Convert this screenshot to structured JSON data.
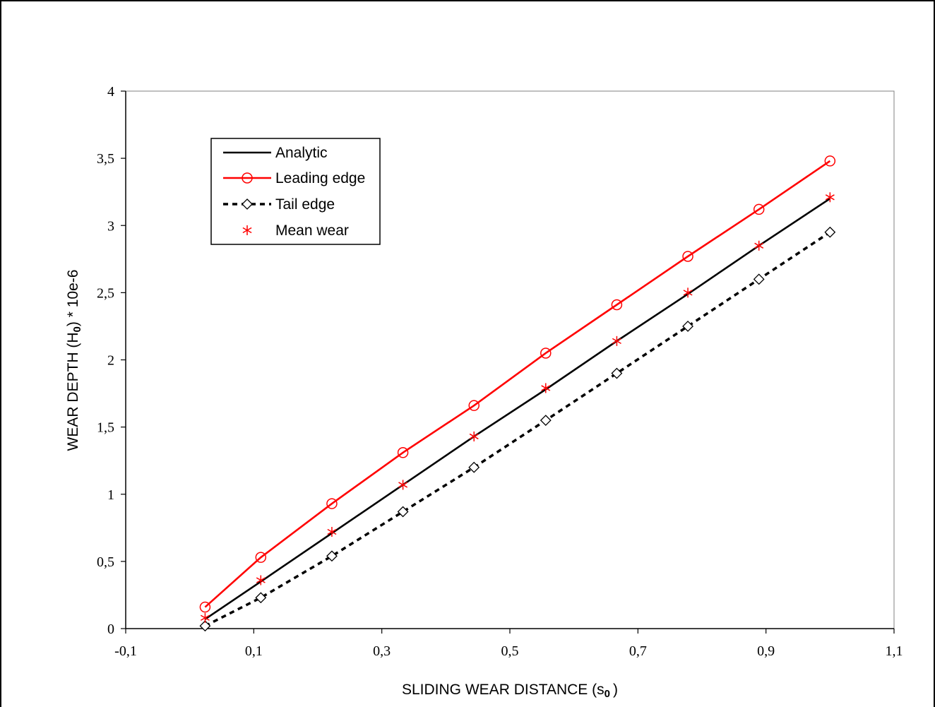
{
  "chart_data": {
    "type": "line",
    "title": "",
    "xlabel_main": "SLIDING WEAR DISTANCE (s",
    "xlabel_sub": "0",
    "xlabel_end": ")",
    "ylabel_main": "WEAR DEPTH (H",
    "ylabel_sub": "0",
    "ylabel_end": ") * 10e-6",
    "xlim": [
      -0.1,
      1.1
    ],
    "ylim": [
      0,
      4
    ],
    "x_ticks": [
      -0.1,
      0.1,
      0.3,
      0.5,
      0.7,
      0.9,
      1.1
    ],
    "x_tick_labels": [
      "-0,1",
      "0,1",
      "0,3",
      "0,5",
      "0,7",
      "0,9",
      "1,1"
    ],
    "y_ticks": [
      0,
      0.5,
      1,
      1.5,
      2,
      2.5,
      3,
      3.5,
      4
    ],
    "y_tick_labels": [
      "0",
      "0,5",
      "1",
      "1,5",
      "2",
      "2,5",
      "3",
      "3,5",
      "4"
    ],
    "grid": false,
    "legend_position": "top-left",
    "x": [
      0.024,
      0.111,
      0.222,
      0.333,
      0.444,
      0.556,
      0.667,
      0.778,
      0.889,
      1.0
    ],
    "series": [
      {
        "name": "Analytic",
        "color": "#000000",
        "style": "solid",
        "marker": "none",
        "values": [
          0.07,
          0.35,
          0.71,
          1.07,
          1.43,
          1.78,
          2.14,
          2.49,
          2.85,
          3.2
        ]
      },
      {
        "name": "Leading edge",
        "color": "#ff0000",
        "style": "solid",
        "marker": "circle",
        "values": [
          0.16,
          0.53,
          0.93,
          1.31,
          1.66,
          2.05,
          2.41,
          2.77,
          3.12,
          3.48
        ]
      },
      {
        "name": "Tail edge",
        "color": "#000000",
        "style": "dashed",
        "marker": "diamond",
        "values": [
          0.02,
          0.23,
          0.54,
          0.87,
          1.2,
          1.55,
          1.9,
          2.25,
          2.6,
          2.95
        ]
      },
      {
        "name": "Mean wear",
        "color": "#ff0000",
        "style": "none",
        "marker": "asterisk",
        "values": [
          0.08,
          0.36,
          0.72,
          1.07,
          1.43,
          1.79,
          2.14,
          2.5,
          2.85,
          3.21
        ]
      }
    ]
  }
}
